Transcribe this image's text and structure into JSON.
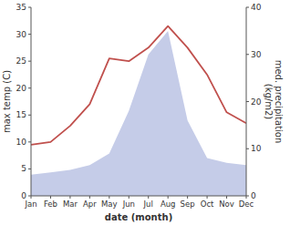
{
  "chart_data": {
    "type": "line",
    "categories": [
      "Jan",
      "Feb",
      "Mar",
      "Apr",
      "May",
      "Jun",
      "Jul",
      "Aug",
      "Sep",
      "Oct",
      "Nov",
      "Dec"
    ],
    "xlabel": "date (month)",
    "ylabel": "max temp (C)",
    "y2label": "med. precipitation\n(kg/m2)",
    "series": [
      {
        "type": "area",
        "axis": "y2",
        "color": "#c5cce8",
        "values": [
          4.5,
          5.0,
          5.5,
          6.5,
          9.0,
          18.0,
          30.0,
          35.0,
          16.0,
          8.0,
          7.0,
          6.5
        ]
      },
      {
        "type": "line",
        "color": "#c0504d",
        "values": [
          9.5,
          10.0,
          13.0,
          17.0,
          25.5,
          25.0,
          27.5,
          31.5,
          27.5,
          22.5,
          15.5,
          13.5
        ]
      }
    ],
    "ylim": [
      0,
      35
    ],
    "yticks": [
      0,
      5,
      10,
      15,
      20,
      25,
      30,
      35
    ],
    "y2lim": [
      0,
      40
    ],
    "y2ticks": [
      0,
      10,
      20,
      30,
      40
    ]
  }
}
